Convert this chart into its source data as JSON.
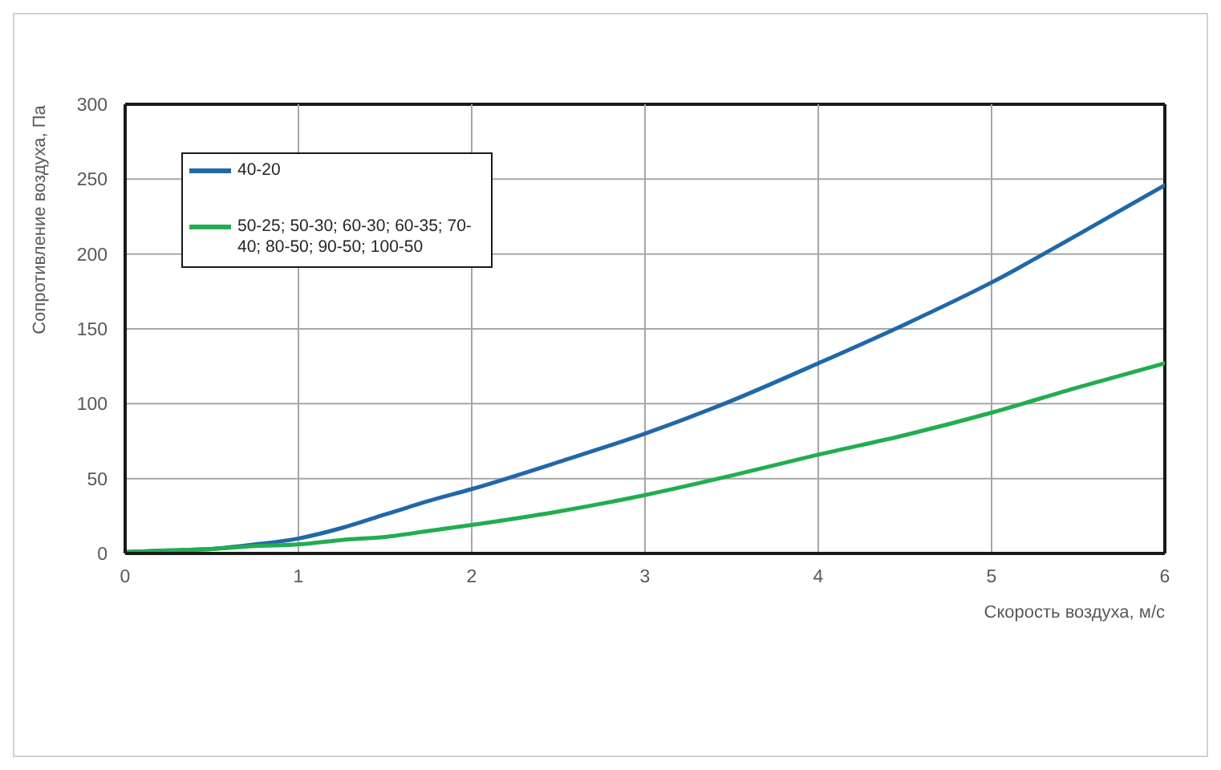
{
  "chart_data": {
    "type": "line",
    "xlabel": "Скорость воздуха, м/с",
    "ylabel": "Сопротивление воздуха, Па",
    "x": [
      0,
      0.25,
      0.5,
      0.75,
      1,
      1.25,
      1.5,
      1.75,
      2,
      2.5,
      3,
      3.5,
      4,
      4.5,
      5,
      5.5,
      6
    ],
    "series": [
      {
        "name": "40-20",
        "color": "#2068a8",
        "values": [
          1,
          2,
          3,
          6,
          10,
          17,
          26,
          35,
          43,
          61,
          80,
          102,
          127,
          153,
          181,
          213,
          246
        ]
      },
      {
        "name": "50-25; 50-30; 60-30; 60-35; 70-40; 80-50; 90-50; 100-50",
        "color": "#22ad50",
        "values": [
          1,
          2,
          3,
          5,
          6,
          9,
          11,
          15,
          19,
          28,
          39,
          52,
          66,
          79,
          94,
          111,
          127
        ]
      }
    ],
    "xlim": [
      0,
      6
    ],
    "xticks": [
      0,
      1,
      2,
      3,
      4,
      5,
      6
    ],
    "ylim": [
      0,
      300
    ],
    "yticks": [
      0,
      50,
      100,
      150,
      200,
      250,
      300
    ],
    "grid": true,
    "legend": "top left",
    "marker": "none",
    "line_style": "solid"
  }
}
